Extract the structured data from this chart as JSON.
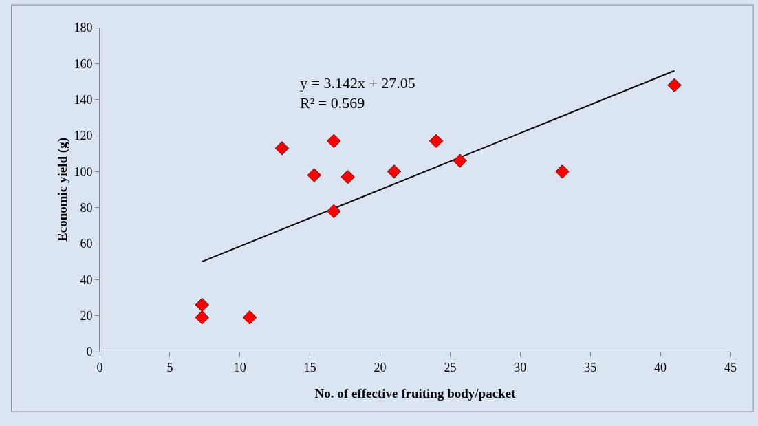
{
  "chart_data": {
    "type": "scatter",
    "xlabel": "No. of effective fruiting body/packet",
    "ylabel": "Economic yield (g)",
    "x": [
      7.3,
      7.3,
      10.7,
      13,
      15.3,
      16.7,
      16.7,
      17.7,
      21,
      24,
      25.7,
      33,
      41
    ],
    "series": [
      {
        "color": "#ff0000",
        "values": [
          26,
          19,
          19,
          113,
          98,
          117,
          78,
          97,
          100,
          117,
          106,
          100,
          148
        ]
      },
      {
        "type": "line",
        "marker": "none",
        "color": "#000000",
        "x": [
          7.3,
          41
        ],
        "values": [
          50,
          156
        ]
      }
    ],
    "annotations": [
      "y = 3.142x + 27.05",
      "R² = 0.569"
    ],
    "xlim": [
      0,
      45
    ],
    "xticks": [
      0,
      5,
      10,
      15,
      20,
      25,
      30,
      35,
      40,
      45
    ],
    "ylim": [
      0,
      180
    ],
    "yticks": [
      0,
      20,
      40,
      60,
      80,
      100,
      120,
      140,
      160,
      180
    ],
    "grid": false,
    "marker": "diamond",
    "line_style": "solid"
  }
}
